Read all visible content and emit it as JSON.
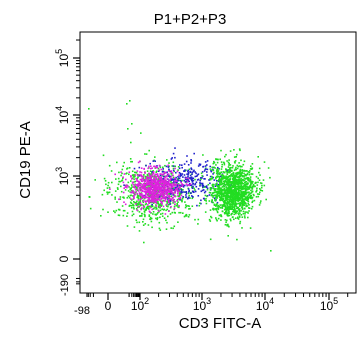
{
  "chart_data": {
    "type": "scatter",
    "title": "P1+P2+P3",
    "xlabel": "CD3 FITC-A",
    "ylabel": "CD19 PE-A",
    "x_scale": "biexponential",
    "y_scale": "biexponential",
    "xlim": [
      -98,
      262144
    ],
    "ylim": [
      -190,
      262144
    ],
    "x_ticks": [
      {
        "value": -98,
        "label": "-98"
      },
      {
        "value": 0,
        "label": "0"
      },
      {
        "value": 100,
        "label": "10",
        "exp": "2"
      },
      {
        "value": 1000,
        "label": "10",
        "exp": "3"
      },
      {
        "value": 10000,
        "label": "10",
        "exp": "4"
      },
      {
        "value": 100000,
        "label": "10",
        "exp": "5"
      }
    ],
    "y_ticks": [
      {
        "value": -190,
        "label": "-190"
      },
      {
        "value": 0,
        "label": "0"
      },
      {
        "value": 1000,
        "label": "10",
        "exp": "3"
      },
      {
        "value": 10000,
        "label": "10",
        "exp": "4"
      },
      {
        "value": 100000,
        "label": "10",
        "exp": "5"
      }
    ],
    "grid": false,
    "legend": "none",
    "populations": [
      {
        "color": "#22dd22",
        "center": [
          160,
          250
        ],
        "spread": [
          0.55,
          0.5
        ],
        "count": 700
      },
      {
        "color": "#2222cc",
        "center": [
          500,
          700
        ],
        "spread": [
          0.5,
          0.35
        ],
        "count": 350
      },
      {
        "color": "#dd22dd",
        "center": [
          170,
          400
        ],
        "spread": [
          0.3,
          0.3
        ],
        "count": 700
      },
      {
        "color": "#22dd22",
        "center": [
          3000,
          300
        ],
        "spread": [
          0.28,
          0.45
        ],
        "count": 1300
      }
    ]
  }
}
